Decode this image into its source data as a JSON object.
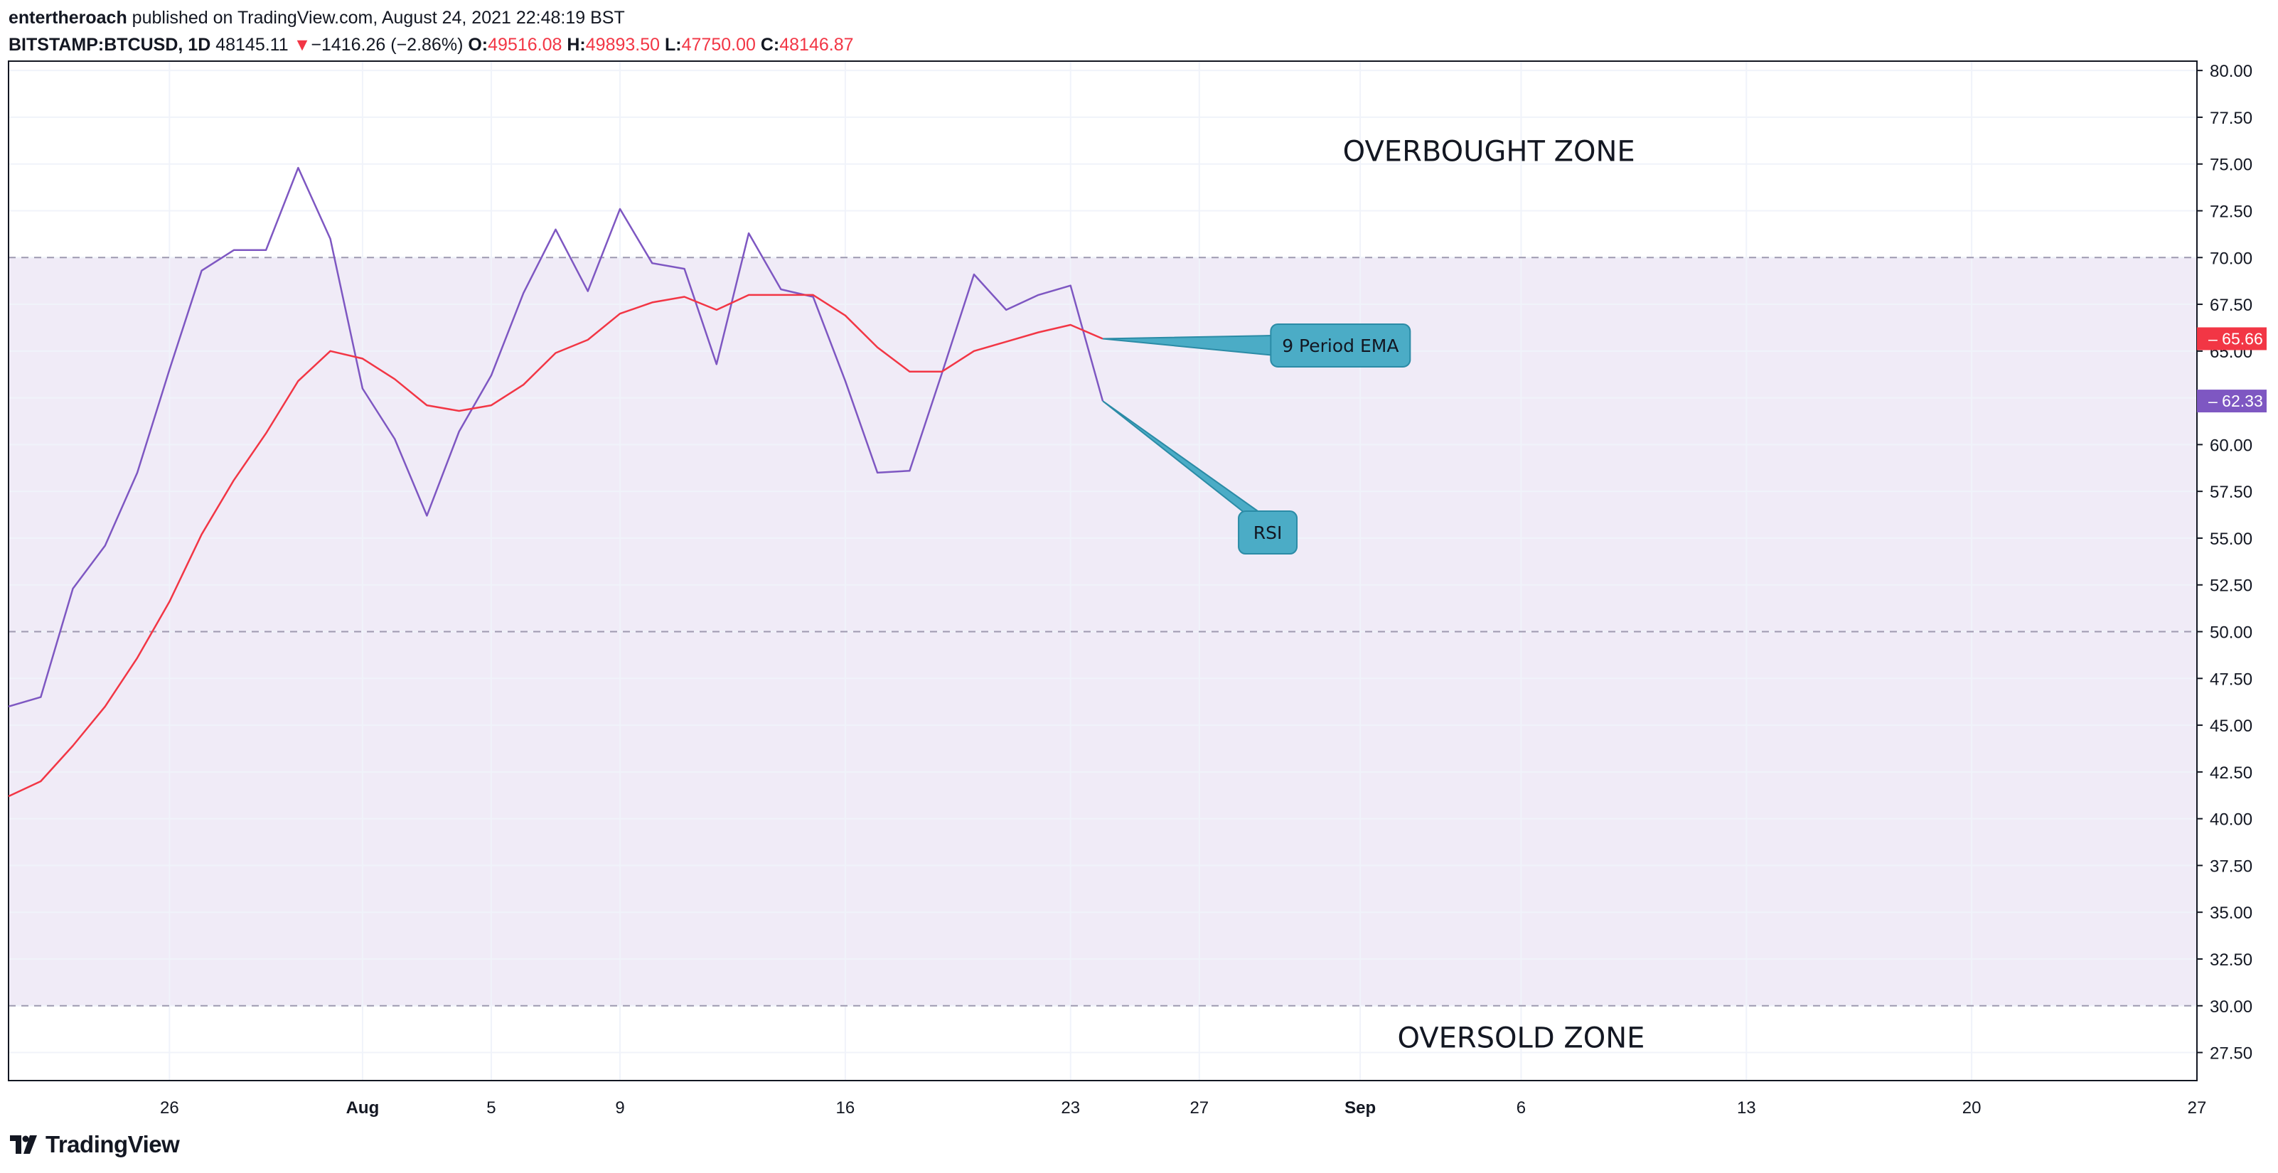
{
  "header": {
    "author": "entertheroach",
    "published_text": "published on TradingView.com, August 24, 2021 22:48:19 BST",
    "symbol": "BITSTAMP:BTCUSD, 1D",
    "last": "48145.11",
    "change_arrow": "▼",
    "change": "−1416.26 (−2.86%)",
    "o_label": "O:",
    "o_value": "49516.08",
    "h_label": "H:",
    "h_value": "49893.50",
    "l_label": "L:",
    "l_value": "47750.00",
    "c_label": "C:",
    "c_value": "48146.87"
  },
  "footer": {
    "brand": "TradingView",
    "logo_icon": "tradingview-logo-icon"
  },
  "colors": {
    "rsi": "#7e57c2",
    "ema": "#f23645",
    "band": "#ede7f6",
    "callout": "#4bacc6",
    "callout_border": "#2b8ba6",
    "grid": "#f0f3fa",
    "dashed": "#9e9ab0"
  },
  "chart_data": {
    "type": "line",
    "x_unit": "date (2021)",
    "x_tick_labels": [
      {
        "label": "26",
        "date": "2021-07-26"
      },
      {
        "label": "Aug",
        "date": "2021-08-01"
      },
      {
        "label": "5",
        "date": "2021-08-05"
      },
      {
        "label": "9",
        "date": "2021-08-09"
      },
      {
        "label": "16",
        "date": "2021-08-16"
      },
      {
        "label": "23",
        "date": "2021-08-23"
      },
      {
        "label": "27",
        "date": "2021-08-27"
      },
      {
        "label": "Sep",
        "date": "2021-09-01"
      },
      {
        "label": "6",
        "date": "2021-09-06"
      },
      {
        "label": "13",
        "date": "2021-09-13"
      },
      {
        "label": "20",
        "date": "2021-09-20"
      },
      {
        "label": "27",
        "date": "2021-09-27"
      }
    ],
    "y_ticks": [
      "80.00",
      "77.50",
      "75.00",
      "72.50",
      "70.00",
      "67.50",
      "65.00",
      "62.50",
      "60.00",
      "57.50",
      "55.00",
      "52.50",
      "50.00",
      "47.50",
      "45.00",
      "42.50",
      "40.00",
      "37.50",
      "35.00",
      "32.50",
      "30.00",
      "27.50"
    ],
    "ylim": [
      26.0,
      80.5
    ],
    "xlim": [
      "2021-07-21",
      "2021-09-27"
    ],
    "dates": [
      "2021-07-21",
      "2021-07-22",
      "2021-07-23",
      "2021-07-24",
      "2021-07-25",
      "2021-07-26",
      "2021-07-27",
      "2021-07-28",
      "2021-07-29",
      "2021-07-30",
      "2021-07-31",
      "2021-08-01",
      "2021-08-02",
      "2021-08-03",
      "2021-08-04",
      "2021-08-05",
      "2021-08-06",
      "2021-08-07",
      "2021-08-08",
      "2021-08-09",
      "2021-08-10",
      "2021-08-11",
      "2021-08-12",
      "2021-08-13",
      "2021-08-14",
      "2021-08-15",
      "2021-08-16",
      "2021-08-17",
      "2021-08-18",
      "2021-08-19",
      "2021-08-20",
      "2021-08-21",
      "2021-08-22",
      "2021-08-23",
      "2021-08-24"
    ],
    "series": [
      {
        "role": "rsi",
        "values": [
          46.0,
          46.5,
          52.3,
          54.6,
          58.5,
          64.0,
          69.3,
          70.4,
          70.4,
          74.8,
          71.0,
          63.0,
          60.3,
          56.2,
          60.7,
          63.7,
          68.1,
          71.5,
          68.2,
          72.6,
          69.7,
          69.4,
          64.3,
          71.3,
          68.3,
          67.9,
          63.4,
          58.5,
          58.6,
          63.8,
          69.1,
          67.2,
          68.0,
          68.5,
          62.33
        ]
      },
      {
        "role": "ema",
        "values": [
          41.2,
          42.0,
          43.9,
          46.0,
          48.6,
          51.6,
          55.2,
          58.1,
          60.6,
          63.4,
          65.0,
          64.6,
          63.5,
          62.1,
          61.8,
          62.1,
          63.2,
          64.9,
          65.6,
          67.0,
          67.6,
          67.9,
          67.2,
          68.0,
          68.0,
          68.0,
          66.9,
          65.2,
          63.9,
          63.9,
          65.0,
          65.5,
          66.0,
          66.4,
          65.66
        ]
      }
    ],
    "reference_lines": [
      70,
      50,
      30
    ],
    "shaded_band": [
      30,
      70
    ],
    "price_labels": [
      {
        "role": "ema",
        "value": "65.66",
        "color": "#f23645"
      },
      {
        "role": "rsi",
        "value": "62.33",
        "color": "#7e57c2"
      }
    ],
    "annotations": {
      "overbought": "OVERBOUGHT ZONE",
      "oversold": "OVERSOLD ZONE",
      "ema_callout": "9 Period EMA",
      "rsi_callout": "RSI"
    },
    "grid": true
  }
}
